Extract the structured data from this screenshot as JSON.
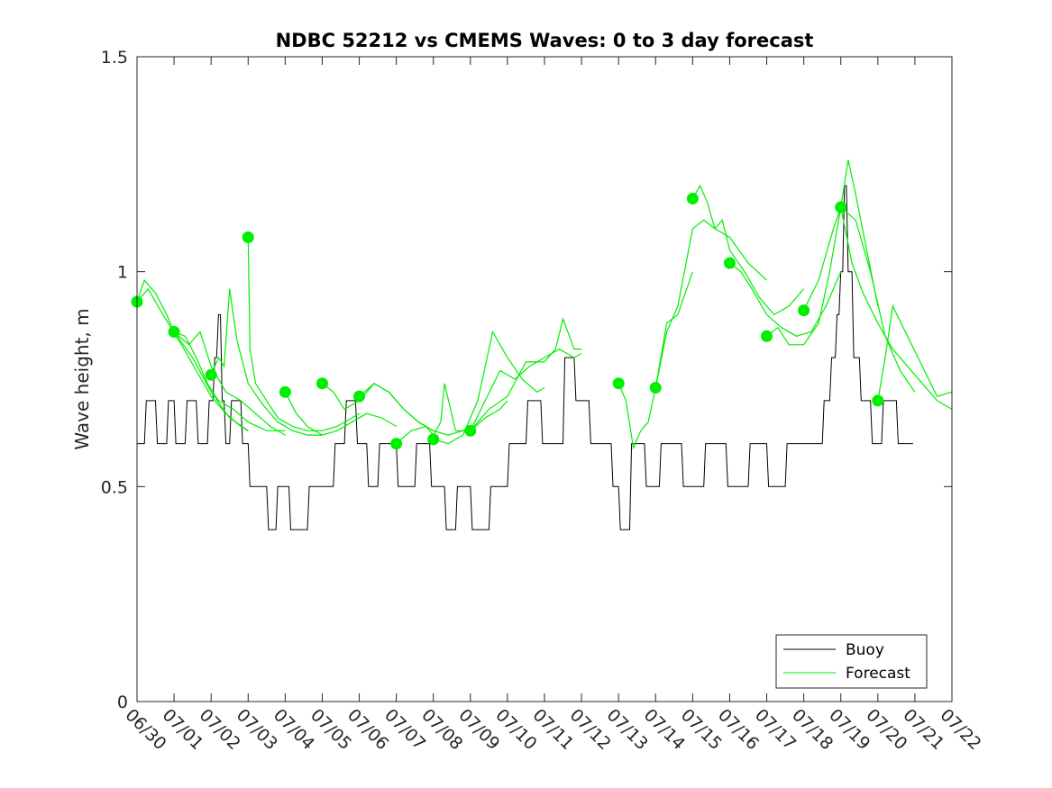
{
  "chart_data": {
    "type": "line",
    "title": "NDBC 52212 vs CMEMS Waves: 0 to 3 day forecast",
    "xlabel": "",
    "ylabel": "Wave height, m",
    "xlim": [
      "06/30",
      "07/22"
    ],
    "ylim": [
      0,
      1.5
    ],
    "x_ticks": [
      "06/30",
      "07/01",
      "07/02",
      "07/03",
      "07/04",
      "07/05",
      "07/06",
      "07/07",
      "07/08",
      "07/09",
      "07/10",
      "07/11",
      "07/12",
      "07/13",
      "07/14",
      "07/15",
      "07/16",
      "07/17",
      "07/18",
      "07/19",
      "07/20",
      "07/21",
      "07/22"
    ],
    "y_ticks": [
      0,
      0.5,
      1,
      1.5
    ],
    "grid": false,
    "legend": {
      "placement": "bottom-right",
      "entries": [
        "Buoy",
        "Forecast"
      ]
    },
    "colors": {
      "buoy": "#000000",
      "forecast": "#00ee00",
      "axes": "#262626"
    },
    "x_units": "days since 06/30 00:00",
    "series": [
      {
        "name": "Buoy",
        "x": [
          0,
          0.2,
          0.25,
          0.5,
          0.55,
          0.8,
          0.85,
          1.0,
          1.05,
          1.3,
          1.35,
          1.6,
          1.65,
          1.9,
          1.95,
          2.05,
          2.1,
          2.15,
          2.2,
          2.25,
          2.3,
          2.35,
          2.4,
          2.5,
          2.55,
          2.8,
          2.85,
          3.0,
          3.05,
          3.5,
          3.55,
          3.75,
          3.8,
          4.1,
          4.15,
          4.6,
          4.65,
          5.3,
          5.35,
          5.6,
          5.65,
          5.9,
          5.95,
          6.2,
          6.25,
          6.5,
          6.55,
          7.0,
          7.05,
          7.5,
          7.55,
          7.9,
          7.95,
          8.3,
          8.35,
          8.6,
          8.65,
          9.0,
          9.05,
          9.5,
          9.55,
          10.0,
          10.05,
          10.5,
          10.55,
          10.9,
          10.95,
          11.5,
          11.55,
          11.8,
          11.85,
          12.2,
          12.25,
          12.8,
          12.85,
          13.0,
          13.05,
          13.3,
          13.35,
          13.7,
          13.75,
          14.1,
          14.15,
          14.7,
          14.75,
          15.3,
          15.35,
          15.9,
          15.95,
          16.5,
          16.55,
          17.0,
          17.05,
          17.5,
          17.55,
          18.2,
          18.25,
          18.5,
          18.55,
          18.7,
          18.75,
          18.85,
          18.9,
          18.95,
          19.0,
          19.05,
          19.1,
          19.15,
          19.2,
          19.3,
          19.35,
          19.5,
          19.55,
          19.8,
          19.85,
          20.1,
          20.15,
          20.5,
          20.55,
          20.95
        ],
        "values": [
          0.6,
          0.6,
          0.7,
          0.7,
          0.6,
          0.6,
          0.7,
          0.7,
          0.6,
          0.6,
          0.7,
          0.7,
          0.6,
          0.6,
          0.7,
          0.7,
          0.8,
          0.8,
          0.9,
          0.9,
          0.7,
          0.7,
          0.6,
          0.6,
          0.7,
          0.7,
          0.6,
          0.6,
          0.5,
          0.5,
          0.4,
          0.4,
          0.5,
          0.5,
          0.4,
          0.4,
          0.5,
          0.5,
          0.6,
          0.6,
          0.7,
          0.7,
          0.6,
          0.6,
          0.5,
          0.5,
          0.6,
          0.6,
          0.5,
          0.5,
          0.6,
          0.6,
          0.5,
          0.5,
          0.4,
          0.4,
          0.5,
          0.5,
          0.4,
          0.4,
          0.5,
          0.5,
          0.6,
          0.6,
          0.7,
          0.7,
          0.6,
          0.6,
          0.8,
          0.8,
          0.7,
          0.7,
          0.6,
          0.6,
          0.5,
          0.5,
          0.4,
          0.4,
          0.6,
          0.6,
          0.5,
          0.5,
          0.6,
          0.6,
          0.5,
          0.5,
          0.6,
          0.6,
          0.5,
          0.5,
          0.6,
          0.6,
          0.5,
          0.5,
          0.6,
          0.6,
          0.6,
          0.6,
          0.7,
          0.7,
          0.8,
          0.8,
          0.9,
          0.9,
          1.0,
          1.0,
          1.2,
          1.2,
          1.0,
          1.0,
          0.8,
          0.8,
          0.7,
          0.7,
          0.6,
          0.6,
          0.7,
          0.7,
          0.6,
          0.6
        ]
      },
      {
        "name": "Forecast",
        "runs": [
          {
            "x": [
              0,
              0.2,
              0.5,
              0.8,
              1.0,
              1.5,
              2.0,
              2.5,
              3.0
            ],
            "values": [
              0.93,
              0.98,
              0.95,
              0.9,
              0.86,
              0.8,
              0.72,
              0.66,
              0.63
            ]
          },
          {
            "x": [
              0,
              0.3,
              0.7,
              1.2,
              1.6,
              2.0,
              2.4,
              2.8,
              3.0
            ],
            "values": [
              0.93,
              0.96,
              0.9,
              0.83,
              0.77,
              0.71,
              0.67,
              0.64,
              0.63
            ]
          },
          {
            "x": [
              1.0,
              1.3,
              1.6,
              1.9,
              2.2,
              2.6,
              3.0,
              3.5,
              4.0
            ],
            "values": [
              0.86,
              0.85,
              0.8,
              0.74,
              0.7,
              0.68,
              0.65,
              0.63,
              0.63
            ]
          },
          {
            "x": [
              1.0,
              1.4,
              1.7,
              2.0,
              2.4,
              2.8,
              3.2,
              3.6,
              4.0
            ],
            "values": [
              0.86,
              0.83,
              0.86,
              0.78,
              0.72,
              0.7,
              0.67,
              0.64,
              0.62
            ]
          },
          {
            "x": [
              2.0,
              2.2,
              2.35,
              2.5,
              2.7,
              3.0,
              3.4,
              3.8,
              4.2,
              4.6,
              5.0
            ],
            "values": [
              0.76,
              0.8,
              0.78,
              0.96,
              0.84,
              0.74,
              0.69,
              0.65,
              0.63,
              0.62,
              0.62
            ]
          },
          {
            "x": [
              3.0,
              3.05,
              3.2,
              3.5,
              3.8,
              4.2,
              4.6,
              5.0,
              5.4,
              5.8,
              6.0
            ],
            "values": [
              1.08,
              0.82,
              0.74,
              0.7,
              0.66,
              0.64,
              0.63,
              0.63,
              0.64,
              0.66,
              0.67
            ]
          },
          {
            "x": [
              4.0,
              4.3,
              4.6,
              5.0,
              5.4,
              5.8,
              6.2,
              6.6,
              7.0
            ],
            "values": [
              0.72,
              0.67,
              0.64,
              0.62,
              0.63,
              0.65,
              0.67,
              0.66,
              0.64
            ]
          },
          {
            "x": [
              5.0,
              5.3,
              5.6,
              6.0,
              6.4,
              6.8,
              7.2,
              7.6,
              8.0
            ],
            "values": [
              0.74,
              0.72,
              0.68,
              0.7,
              0.74,
              0.72,
              0.68,
              0.65,
              0.63
            ]
          },
          {
            "x": [
              6.0,
              6.4,
              6.8,
              7.2,
              7.6,
              8.0,
              8.4,
              8.8,
              9.0
            ],
            "values": [
              0.71,
              0.74,
              0.72,
              0.68,
              0.65,
              0.63,
              0.62,
              0.63,
              0.64
            ]
          },
          {
            "x": [
              7.0,
              7.4,
              7.8,
              8.0,
              8.2,
              8.3,
              8.6,
              9.0,
              9.4,
              9.8,
              10.0
            ],
            "values": [
              0.6,
              0.63,
              0.64,
              0.62,
              0.65,
              0.74,
              0.63,
              0.63,
              0.66,
              0.68,
              0.7
            ]
          },
          {
            "x": [
              8.0,
              8.4,
              8.8,
              9.2,
              9.4,
              9.6,
              10.0,
              10.4,
              10.8,
              11.0
            ],
            "values": [
              0.61,
              0.6,
              0.62,
              0.7,
              0.78,
              0.86,
              0.8,
              0.75,
              0.72,
              0.73
            ]
          },
          {
            "x": [
              9.0,
              9.4,
              9.8,
              10.2,
              10.6,
              11.0,
              11.4,
              11.8,
              12.0
            ],
            "values": [
              0.63,
              0.7,
              0.77,
              0.75,
              0.78,
              0.8,
              0.82,
              0.8,
              0.81
            ]
          },
          {
            "x": [
              9.0,
              9.5,
              10.0,
              10.5,
              11.0,
              11.3,
              11.5,
              11.8,
              12.0
            ],
            "values": [
              0.63,
              0.68,
              0.71,
              0.79,
              0.79,
              0.82,
              0.89,
              0.82,
              0.82
            ]
          },
          {
            "x": [
              13.0,
              13.2,
              13.4,
              13.6,
              13.8,
              14.0,
              14.3,
              14.6,
              15.0
            ],
            "values": [
              0.74,
              0.7,
              0.59,
              0.63,
              0.65,
              0.73,
              0.88,
              0.9,
              1.0
            ]
          },
          {
            "x": [
              14.0,
              14.3,
              14.6,
              15.0,
              15.3,
              15.6,
              16.0,
              16.5,
              17.0
            ],
            "values": [
              0.73,
              0.86,
              0.92,
              1.1,
              1.12,
              1.1,
              1.08,
              1.02,
              0.98
            ]
          },
          {
            "x": [
              15.0,
              15.2,
              15.4,
              15.6,
              15.8,
              16.0,
              16.4,
              16.8,
              17.2,
              17.6,
              18.0
            ],
            "values": [
              1.17,
              1.2,
              1.16,
              1.1,
              1.12,
              1.05,
              1.0,
              0.94,
              0.9,
              0.92,
              0.96
            ]
          },
          {
            "x": [
              16.0,
              16.3,
              16.6,
              17.0,
              17.4,
              17.8,
              18.2,
              18.6,
              19.0
            ],
            "values": [
              1.02,
              1.0,
              0.96,
              0.9,
              0.87,
              0.85,
              0.86,
              0.92,
              1.0
            ]
          },
          {
            "x": [
              17.0,
              17.3,
              17.6,
              18.0,
              18.4,
              18.7,
              19.0,
              19.2,
              19.4,
              19.7,
              20.0
            ],
            "values": [
              0.85,
              0.87,
              0.83,
              0.83,
              0.88,
              1.0,
              1.15,
              1.26,
              1.18,
              1.05,
              0.92
            ]
          },
          {
            "x": [
              18.0,
              18.4,
              18.8,
              19.0,
              19.4,
              19.8,
              20.2,
              20.6,
              21.0
            ],
            "values": [
              0.91,
              0.98,
              1.1,
              1.15,
              1.12,
              1.0,
              0.85,
              0.77,
              0.72
            ]
          },
          {
            "x": [
              19.0,
              19.3,
              19.6,
              20.0,
              20.4,
              20.8,
              21.2,
              21.6,
              22.0
            ],
            "values": [
              1.15,
              1.02,
              0.95,
              0.88,
              0.82,
              0.78,
              0.74,
              0.7,
              0.68
            ]
          },
          {
            "x": [
              20.0,
              20.2,
              20.4,
              20.8,
              21.2,
              21.6,
              22.0
            ],
            "values": [
              0.7,
              0.8,
              0.92,
              0.85,
              0.78,
              0.71,
              0.72
            ]
          }
        ],
        "start_points": {
          "x": [
            0,
            1,
            2,
            3,
            4,
            5,
            6,
            7,
            8,
            9,
            13,
            14,
            15,
            16,
            17,
            18,
            19,
            20
          ],
          "values": [
            0.93,
            0.86,
            0.76,
            1.08,
            0.72,
            0.74,
            0.71,
            0.6,
            0.61,
            0.63,
            0.74,
            0.73,
            1.17,
            1.02,
            0.85,
            0.91,
            1.15,
            0.7
          ]
        }
      }
    ]
  }
}
